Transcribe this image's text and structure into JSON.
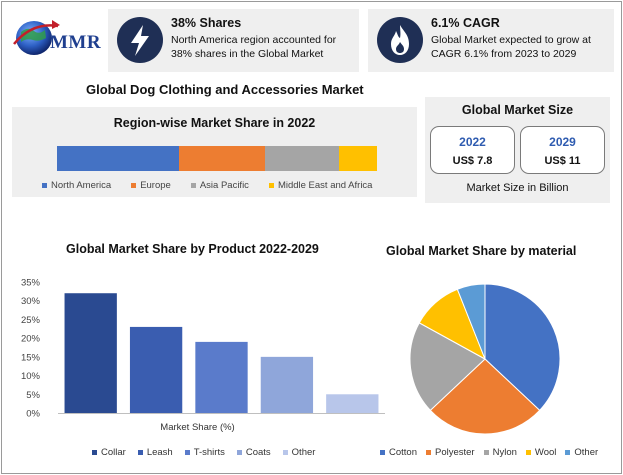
{
  "brand": {
    "logo_text": "MMR"
  },
  "stats": [
    {
      "title": "38% Shares",
      "description": "North America region accounted for 38% shares in the Global Market",
      "icon": "lightning-bolt-icon"
    },
    {
      "title": "6.1% CAGR",
      "description": "Global Market expected to grow at CAGR 6.1% from 2023 to 2029",
      "icon": "flame-icon"
    }
  ],
  "main_title": "Global Dog Clothing and Accessories Market",
  "region": {
    "title": "Region-wise Market Share in 2022",
    "segments": [
      {
        "name": "North America",
        "share": 38,
        "color": "#4472c4"
      },
      {
        "name": "Europe",
        "share": 27,
        "color": "#ed7d31"
      },
      {
        "name": "Asia Pacific",
        "share": 23,
        "color": "#a5a5a5"
      },
      {
        "name": "Middle East and Africa",
        "share": 12,
        "color": "#ffc000"
      }
    ]
  },
  "market_size": {
    "title": "Global Market Size",
    "items": [
      {
        "year": "2022",
        "value": "US$ 7.8"
      },
      {
        "year": "2029",
        "value": "US$ 11"
      }
    ],
    "note": "Market Size in Billion"
  },
  "chart_data": [
    {
      "type": "bar",
      "title": "Global Market Share by Product 2022-2029",
      "xlabel": "Market Share (%)",
      "ylabel": "",
      "categories": [
        "Collar",
        "Leash",
        "T-shirts",
        "Coats",
        "Other"
      ],
      "values": [
        32,
        23,
        19,
        15,
        5
      ],
      "colors": [
        "#2a4a91",
        "#3a5db0",
        "#5a7bcb",
        "#8fa6da",
        "#b8c6ea"
      ],
      "yticks": [
        "0%",
        "5%",
        "10%",
        "15%",
        "20%",
        "25%",
        "30%",
        "35%"
      ],
      "ylim": [
        0,
        35
      ],
      "grid": false,
      "legend": "bottom"
    },
    {
      "type": "pie",
      "title": "Global Market Share by material",
      "categories": [
        "Cotton",
        "Polyester",
        "Nylon",
        "Wool",
        "Other"
      ],
      "values": [
        37,
        26,
        20,
        11,
        6
      ],
      "colors": [
        "#4472c4",
        "#ed7d31",
        "#a5a5a5",
        "#ffc000",
        "#5b9bd5"
      ],
      "legend": "bottom"
    }
  ]
}
